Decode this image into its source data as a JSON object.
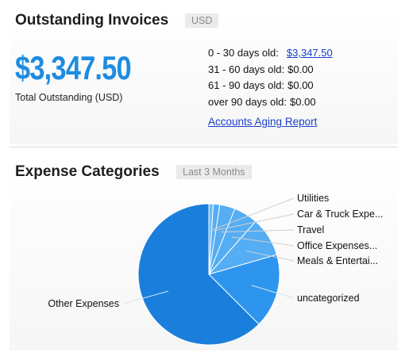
{
  "outstanding": {
    "title": "Outstanding Invoices",
    "currency_badge": "USD",
    "total": "$3,347.50",
    "total_label": "Total Outstanding (USD)",
    "aging": [
      {
        "label": "0 - 30 days old:",
        "value": "$3,347.50",
        "is_link": true
      },
      {
        "label": "31 - 60 days old:",
        "value": "$0.00",
        "is_link": false
      },
      {
        "label": "61 - 90 days old:",
        "value": "$0.00",
        "is_link": false
      },
      {
        "label": "over 90 days old:",
        "value": "$0.00",
        "is_link": false
      }
    ],
    "report_link": "Accounts Aging Report"
  },
  "expenses": {
    "title": "Expense Categories",
    "period_badge": "Last 3 Months"
  },
  "colors": {
    "accent_blue": "#1e8ce0",
    "link_blue": "#1a3fcc",
    "pie_dark": "#1a7fdc",
    "pie_mid": "#2d95ee",
    "pie_light": "#55adf3",
    "pie_lighter": "#6fbcf6"
  },
  "chart_data": {
    "type": "pie",
    "title": "",
    "slices": [
      {
        "label": "Utilities",
        "value": 1.0
      },
      {
        "label": "Car & Truck Expe...",
        "value": 1.5
      },
      {
        "label": "Travel",
        "value": 3.5
      },
      {
        "label": "Office Expenses...",
        "value": 5.5
      },
      {
        "label": "Meals & Entertai...",
        "value": 9.0
      },
      {
        "label": "uncategorized",
        "value": 17.0
      },
      {
        "label": "Other Expenses",
        "value": 62.5
      }
    ],
    "legend": "none"
  }
}
